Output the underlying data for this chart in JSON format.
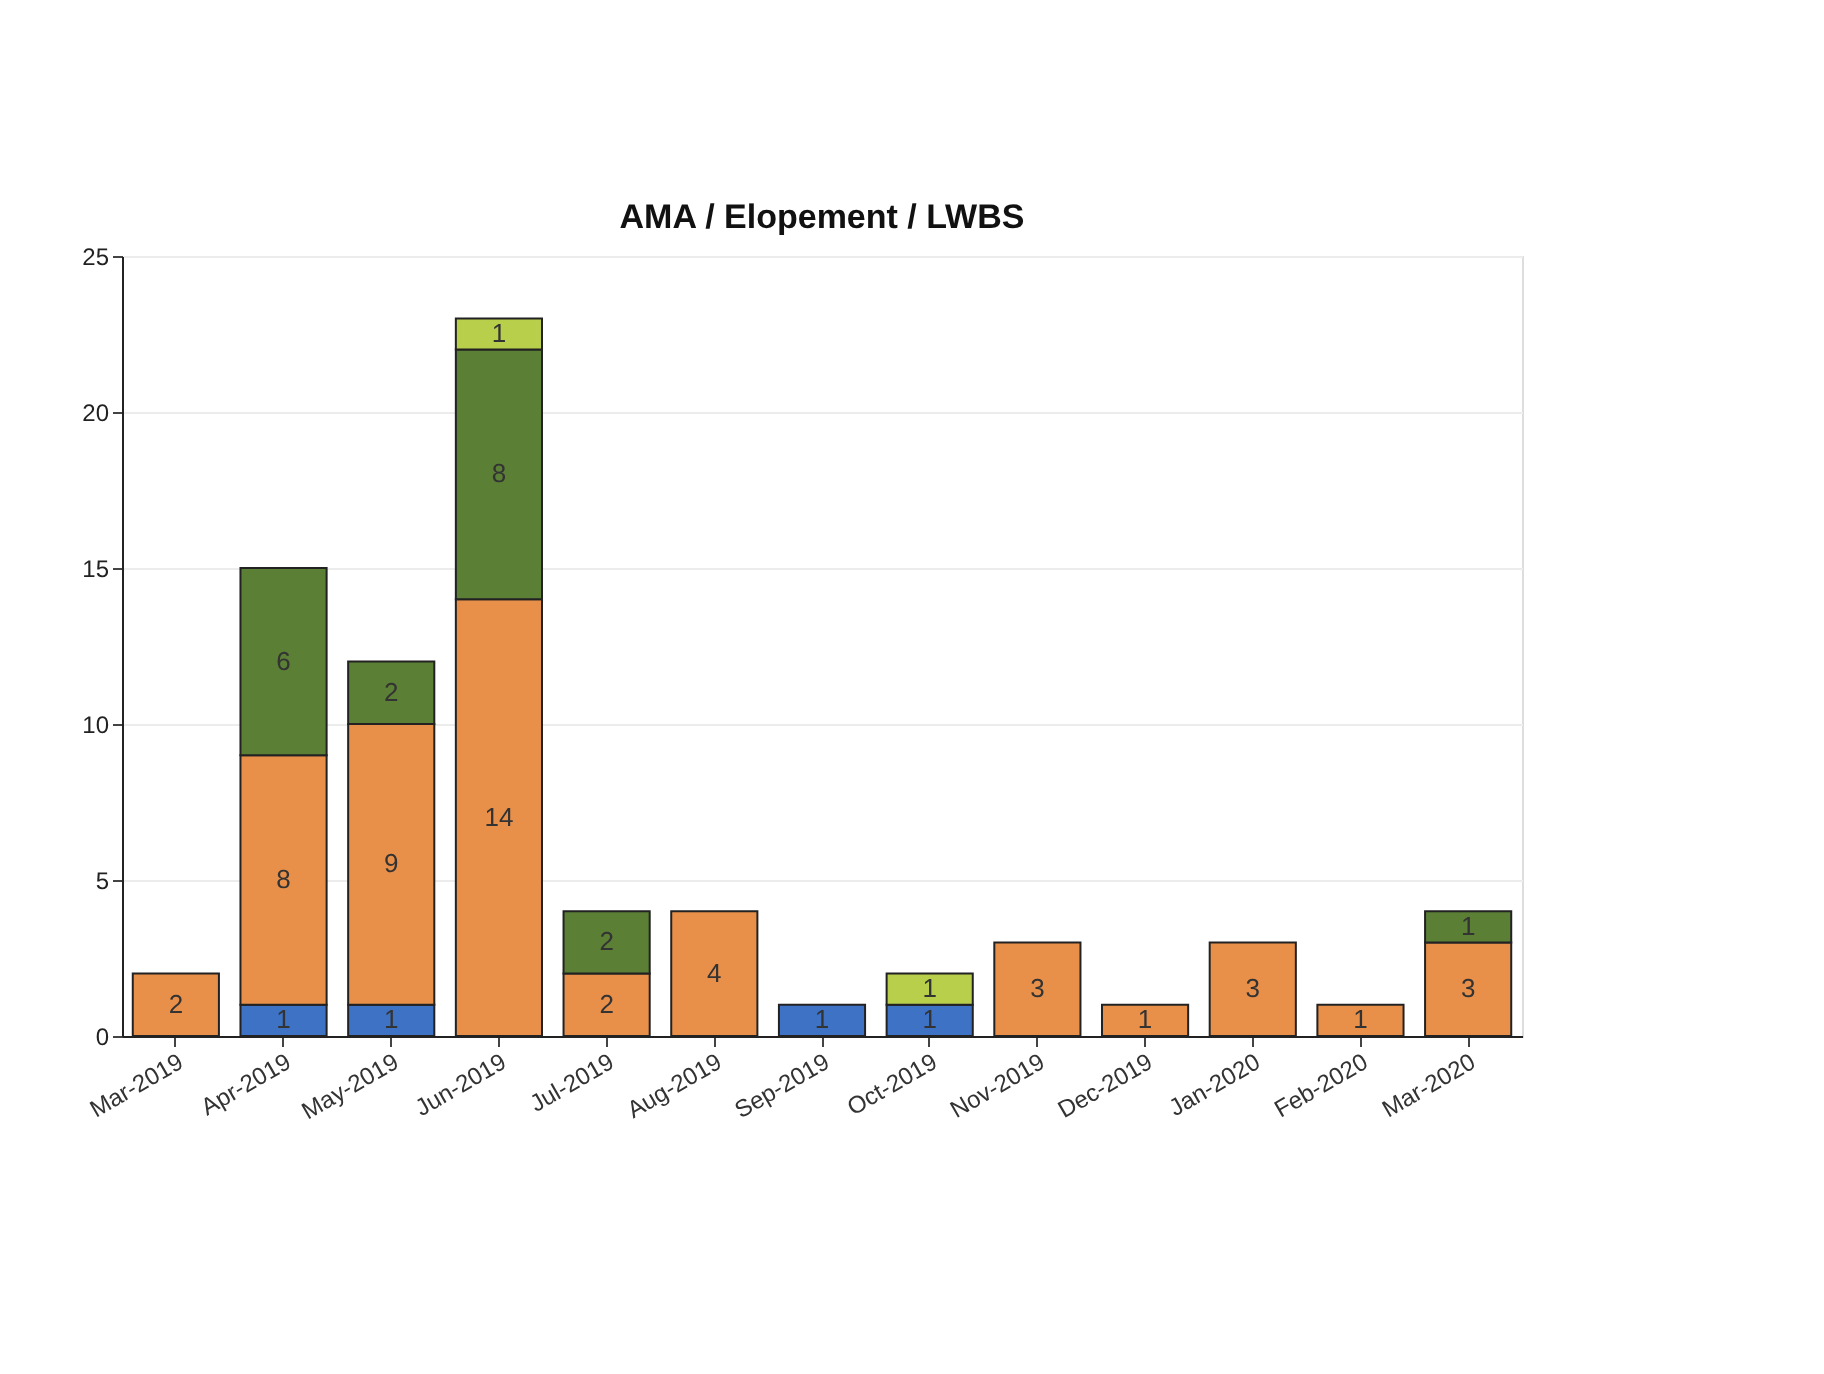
{
  "chart_data": {
    "type": "bar",
    "title": "AMA / Elopement / LWBS",
    "stacked": true,
    "data_labels": true,
    "grid": "y",
    "legend": false,
    "categories": [
      "Mar-2019",
      "Apr-2019",
      "May-2019",
      "Jun-2019",
      "Jul-2019",
      "Aug-2019",
      "Sep-2019",
      "Oct-2019",
      "Nov-2019",
      "Dec-2019",
      "Jan-2020",
      "Feb-2020",
      "Mar-2020"
    ],
    "series": [
      {
        "color": "#3d72c4",
        "values": [
          null,
          1,
          1,
          null,
          null,
          null,
          1,
          1,
          null,
          null,
          null,
          null,
          null
        ]
      },
      {
        "color": "#e8904a",
        "values": [
          2,
          8,
          9,
          14,
          2,
          4,
          null,
          null,
          3,
          1,
          3,
          1,
          3
        ]
      },
      {
        "color": "#5b7f35",
        "values": [
          null,
          6,
          2,
          8,
          2,
          null,
          null,
          null,
          null,
          null,
          null,
          null,
          1
        ]
      },
      {
        "color": "#b8cf4c",
        "values": [
          null,
          null,
          null,
          1,
          null,
          null,
          null,
          1,
          null,
          null,
          null,
          null,
          null
        ]
      }
    ],
    "ylim": [
      0,
      25
    ],
    "yticks": [
      0,
      5,
      10,
      15,
      20,
      25
    ]
  }
}
